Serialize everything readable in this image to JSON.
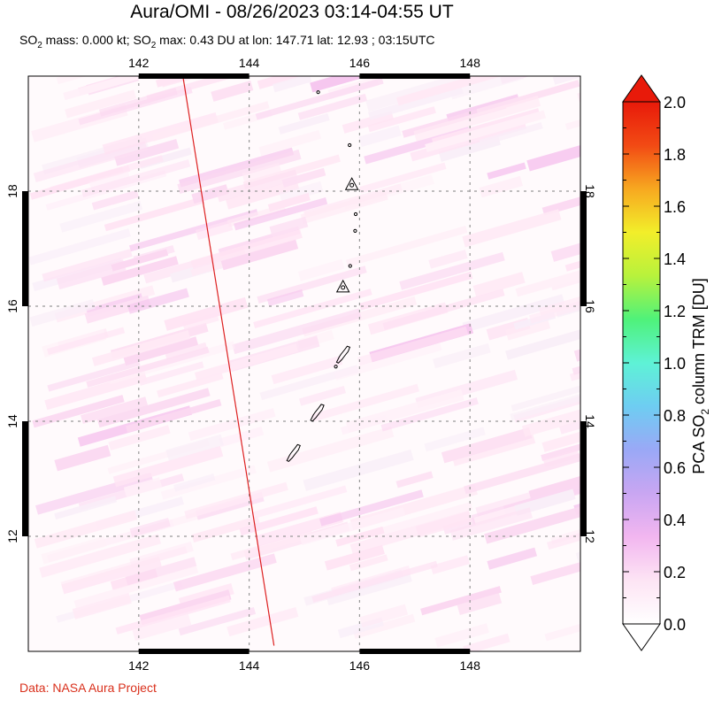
{
  "title": "Aura/OMI - 08/26/2023 03:14-04:55 UT",
  "subtitle": {
    "so2_prefix": "SO",
    "so2_sub": "2",
    "mass_text": " mass: 0.000 kt; SO",
    "max_sub": "2",
    "max_text": " max: 0.43 DU at lon: 147.71 lat: 12.93 ; 03:15UTC"
  },
  "footer": "Data: NASA Aura Project",
  "colors": {
    "title": "#000000",
    "footer": "#d9301c",
    "grid": "#999999",
    "track": "#dd2020",
    "coast": "#000000",
    "pixel_low": "#ffe4f4",
    "pixel_mid": "#f6c4ee"
  },
  "chart_data": {
    "type": "heatmap",
    "map": {
      "lon_range": [
        140,
        150
      ],
      "lat_range": [
        10,
        20
      ],
      "x_ticks": [
        142,
        144,
        146,
        148
      ],
      "y_ticks": [
        12,
        14,
        16,
        18
      ],
      "grid": true,
      "satellite_track": [
        [
          142.8,
          20.0
        ],
        [
          144.45,
          10.1
        ]
      ],
      "max_point": {
        "lon": 147.71,
        "lat": 12.93,
        "value": 0.43
      }
    },
    "colorbar": {
      "label_prefix": "PCA SO",
      "label_sub": "2",
      "label_suffix": " column TRM [DU]",
      "range": [
        0.0,
        2.0
      ],
      "ticks": [
        "0.0",
        "0.2",
        "0.4",
        "0.6",
        "0.8",
        "1.0",
        "1.2",
        "1.4",
        "1.6",
        "1.8",
        "2.0"
      ],
      "extend": "both",
      "stops": [
        "#ffffff",
        "#fde4f4",
        "#f2b6f0",
        "#c9a6f2",
        "#9aa8f6",
        "#6ecdf2",
        "#5ef2d6",
        "#4ff27a",
        "#b8f23c",
        "#f2ee2a",
        "#f7a820",
        "#f24a14",
        "#e81a0a"
      ]
    },
    "islands": [
      {
        "name": "",
        "lon": 145.25,
        "lat": 19.72,
        "type": "dot"
      },
      {
        "name": "",
        "lon": 145.82,
        "lat": 18.8,
        "type": "dot"
      },
      {
        "name": "",
        "lon": 145.86,
        "lat": 18.12,
        "type": "volcano"
      },
      {
        "name": "",
        "lon": 145.93,
        "lat": 17.6,
        "type": "dot"
      },
      {
        "name": "",
        "lon": 145.92,
        "lat": 17.31,
        "type": "dot"
      },
      {
        "name": "",
        "lon": 145.83,
        "lat": 16.7,
        "type": "dot"
      },
      {
        "name": "",
        "lon": 145.7,
        "lat": 16.34,
        "type": "volcano"
      },
      {
        "name": "",
        "lon": 145.68,
        "lat": 15.15,
        "type": "island"
      },
      {
        "name": "",
        "lon": 145.57,
        "lat": 14.95,
        "type": "dot"
      },
      {
        "name": "",
        "lon": 145.21,
        "lat": 14.14,
        "type": "island"
      },
      {
        "name": "",
        "lon": 144.78,
        "lat": 13.44,
        "type": "island"
      }
    ]
  }
}
